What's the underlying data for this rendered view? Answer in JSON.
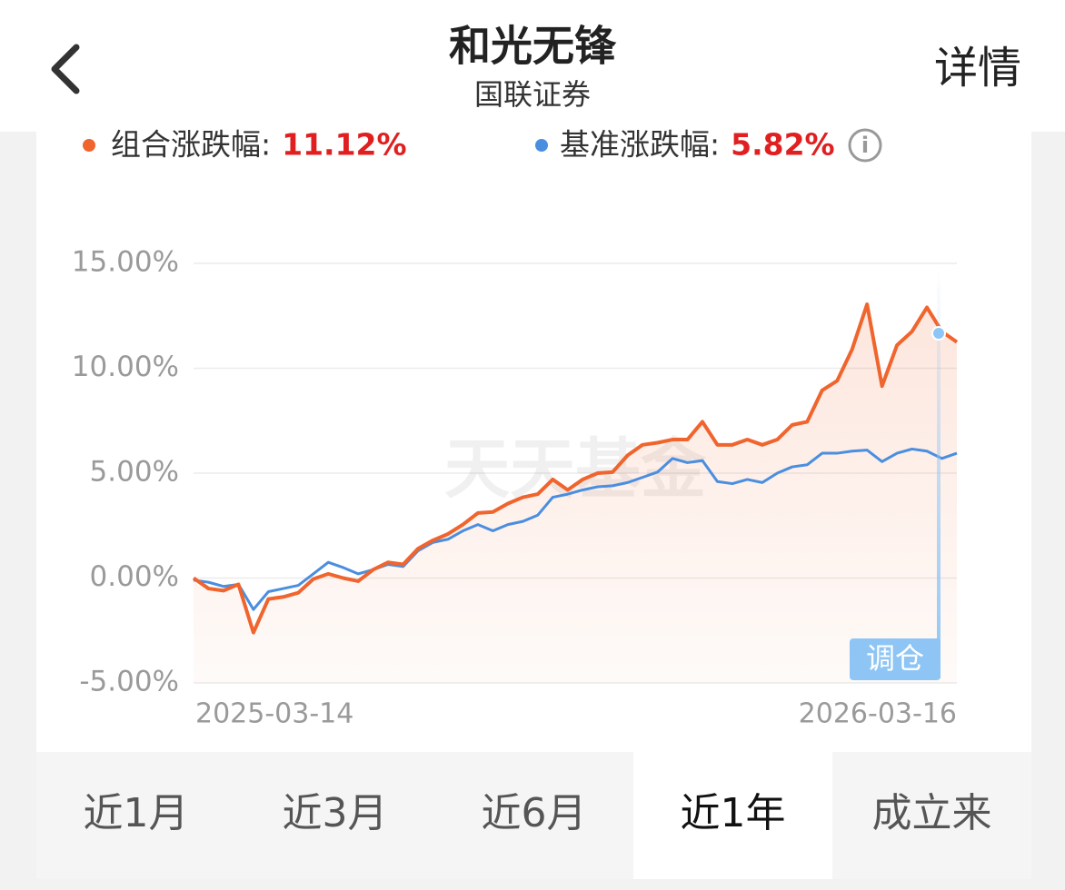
{
  "header": {
    "title": "和光无锋",
    "subtitle": "国联证券",
    "action": "详情"
  },
  "chart_data": {
    "type": "line",
    "watermark": "天天基金",
    "annotation": "调仓",
    "categories": [
      "2025-03-14",
      null,
      null,
      null,
      null,
      null,
      null,
      null,
      null,
      null,
      null,
      null,
      null,
      null,
      null,
      null,
      null,
      null,
      null,
      null,
      null,
      null,
      null,
      null,
      null,
      null,
      null,
      null,
      null,
      null,
      null,
      null,
      null,
      null,
      null,
      null,
      null,
      null,
      null,
      null,
      null,
      null,
      null,
      null,
      null,
      null,
      null,
      null,
      null,
      null,
      null,
      "2026-03-16"
    ],
    "series": [
      {
        "name": "组合涨跌幅:",
        "change": "11.12%",
        "color": "#f0642d",
        "values": [
          0,
          -0.5,
          -0.6,
          -0.3,
          -2.6,
          -1.0,
          -0.9,
          -0.7,
          -0.05,
          0.2,
          0,
          -0.15,
          0.4,
          0.75,
          0.65,
          1.4,
          1.8,
          2.1,
          2.55,
          3.1,
          3.15,
          3.55,
          3.85,
          4.0,
          4.7,
          4.2,
          4.7,
          5.0,
          5.05,
          5.85,
          6.35,
          6.45,
          6.6,
          6.6,
          7.45,
          6.35,
          6.35,
          6.6,
          6.35,
          6.6,
          7.3,
          7.45,
          8.95,
          9.4,
          10.9,
          13.05,
          9.15,
          11.1,
          11.75,
          12.9,
          11.75,
          11.25
        ]
      },
      {
        "name": "基准涨跌幅:",
        "change": "5.82%",
        "color": "#4a8ee0",
        "values": [
          -0.1,
          -0.2,
          -0.4,
          -0.3,
          -1.5,
          -0.65,
          -0.5,
          -0.35,
          0.2,
          0.75,
          0.5,
          0.2,
          0.4,
          0.65,
          0.55,
          1.3,
          1.7,
          1.85,
          2.25,
          2.55,
          2.25,
          2.55,
          2.7,
          3.0,
          3.85,
          4.0,
          4.2,
          4.35,
          4.4,
          4.55,
          4.8,
          5.05,
          5.7,
          5.5,
          5.6,
          4.6,
          4.5,
          4.7,
          4.55,
          5.0,
          5.3,
          5.4,
          5.95,
          5.95,
          6.05,
          6.1,
          5.55,
          5.95,
          6.15,
          6.05,
          5.7,
          5.95
        ]
      }
    ],
    "ylim": [
      -5,
      15
    ],
    "yticks": [
      {
        "value": -5,
        "label": "-5.00%"
      },
      {
        "value": 0,
        "label": "0.00%"
      },
      {
        "value": 5,
        "label": "5.00%"
      },
      {
        "value": 10,
        "label": "10.00%"
      },
      {
        "value": 15,
        "label": "15.00%"
      }
    ],
    "grid": true
  },
  "tabs": {
    "items": [
      "近1月",
      "近3月",
      "近6月",
      "近1年",
      "成立来"
    ],
    "active": 3
  }
}
